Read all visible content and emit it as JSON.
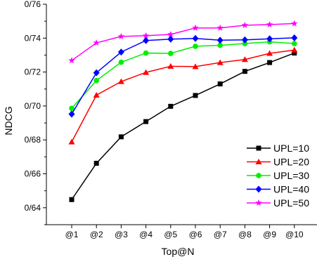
{
  "chart_data": {
    "type": "line",
    "title": "",
    "xlabel": "Top@N",
    "ylabel": "NDCG",
    "categories": [
      "@1",
      "@2",
      "@3",
      "@4",
      "@5",
      "@6",
      "@7",
      "@8",
      "@9",
      "@10"
    ],
    "ylim": [
      0.63,
      0.76
    ],
    "y_ticks": [
      "0/64",
      "0/66",
      "0/68",
      "0/70",
      "0/72",
      "0/74",
      "0/76"
    ],
    "y_tick_values": [
      0.64,
      0.66,
      0.68,
      0.7,
      0.72,
      0.74,
      0.76
    ],
    "grid": false,
    "legend_position": "bottom-right",
    "series": [
      {
        "name": "UPL=10",
        "color": "#000000",
        "marker": "square",
        "values": [
          0.6448,
          0.6662,
          0.6818,
          0.6908,
          0.6998,
          0.7062,
          0.713,
          0.7204,
          0.7256,
          0.7312
        ]
      },
      {
        "name": "UPL=20",
        "color": "#ff0000",
        "marker": "triangle",
        "values": [
          0.6788,
          0.7064,
          0.7144,
          0.7198,
          0.7234,
          0.7232,
          0.7256,
          0.7274,
          0.731,
          0.733
        ]
      },
      {
        "name": "UPL=30",
        "color": "#00ee00",
        "marker": "circle",
        "values": [
          0.6986,
          0.715,
          0.7258,
          0.7312,
          0.731,
          0.7352,
          0.7358,
          0.7368,
          0.7378,
          0.7368
        ]
      },
      {
        "name": "UPL=40",
        "color": "#0000ff",
        "marker": "diamond",
        "values": [
          0.6952,
          0.7196,
          0.7318,
          0.7386,
          0.7394,
          0.7398,
          0.7388,
          0.739,
          0.7396,
          0.7402
        ]
      },
      {
        "name": "UPL=50",
        "color": "#ff00ff",
        "marker": "star",
        "values": [
          0.7268,
          0.7372,
          0.741,
          0.7414,
          0.7422,
          0.746,
          0.746,
          0.7476,
          0.748,
          0.7486
        ]
      }
    ]
  }
}
